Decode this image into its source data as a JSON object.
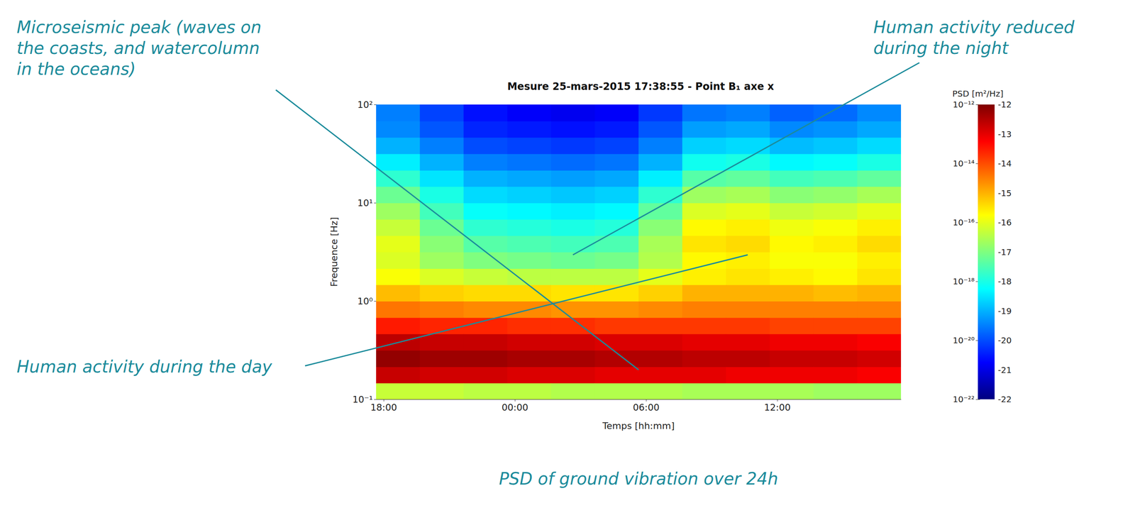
{
  "chart_data": {
    "type": "heatmap",
    "title": "Mesure 25-mars-2015 17:38:55 - Point B₁ axe x",
    "caption": "PSD of ground vibration over 24h",
    "xlabel": "Temps [hh:mm]",
    "ylabel": "Frequence [Hz]",
    "log": "y",
    "xlim": [
      17.65,
      41.65
    ],
    "xticks": [
      {
        "value": 18,
        "label": "18:00"
      },
      {
        "value": 24,
        "label": "00:00"
      },
      {
        "value": 30,
        "label": "06:00"
      },
      {
        "value": 36,
        "label": "12:00"
      }
    ],
    "ylim": [
      0.1,
      100
    ],
    "yticks": [
      {
        "value": 0.1,
        "label": "10⁻¹"
      },
      {
        "value": 1,
        "label": "10⁰"
      },
      {
        "value": 10,
        "label": "10¹"
      },
      {
        "value": 100,
        "label": "10²"
      }
    ],
    "time_edges": [
      17.65,
      19.65,
      21.65,
      23.65,
      25.65,
      27.65,
      29.65,
      31.65,
      33.65,
      35.65,
      37.65,
      39.65,
      41.65
    ],
    "frequency_edges": [
      0.1,
      0.147,
      0.215,
      0.316,
      0.464,
      0.681,
      1,
      1.47,
      2.15,
      3.16,
      4.64,
      6.81,
      10,
      14.7,
      21.5,
      31.6,
      46.4,
      68.1,
      100
    ],
    "values": [
      [
        -16.3,
        -12.7,
        -12.2,
        -12.6,
        -13.5,
        -14.4,
        -15.1,
        -15.8,
        -16.1,
        -16.0,
        -16.3,
        -16.7,
        -17.2,
        -17.8,
        -18.4,
        -19.0,
        -19.4,
        -19.5
      ],
      [
        -16.3,
        -12.8,
        -12.3,
        -12.7,
        -13.6,
        -14.5,
        -15.3,
        -16.1,
        -16.7,
        -16.9,
        -17.2,
        -17.6,
        -18.0,
        -18.5,
        -19.0,
        -19.5,
        -19.9,
        -20.1
      ],
      [
        -16.4,
        -12.8,
        -12.3,
        -12.7,
        -13.6,
        -14.6,
        -15.4,
        -16.3,
        -17.0,
        -17.4,
        -17.8,
        -18.2,
        -18.6,
        -19.0,
        -19.5,
        -20.0,
        -20.4,
        -20.6
      ],
      [
        -16.4,
        -12.9,
        -12.4,
        -12.8,
        -13.7,
        -14.6,
        -15.4,
        -16.4,
        -17.1,
        -17.5,
        -17.9,
        -18.3,
        -18.7,
        -19.1,
        -19.6,
        -20.1,
        -20.5,
        -20.8
      ],
      [
        -16.5,
        -12.9,
        -12.4,
        -12.8,
        -13.7,
        -14.7,
        -15.5,
        -16.4,
        -17.2,
        -17.6,
        -18.0,
        -18.4,
        -18.8,
        -19.2,
        -19.7,
        -20.2,
        -20.6,
        -20.9
      ],
      [
        -16.5,
        -13.0,
        -12.5,
        -12.9,
        -13.8,
        -14.7,
        -15.5,
        -16.4,
        -17.1,
        -17.5,
        -17.9,
        -18.3,
        -18.7,
        -19.1,
        -19.6,
        -20.1,
        -20.5,
        -20.8
      ],
      [
        -16.5,
        -13.0,
        -12.5,
        -12.9,
        -13.8,
        -14.6,
        -15.3,
        -16.0,
        -16.5,
        -16.6,
        -16.9,
        -17.3,
        -17.8,
        -18.4,
        -19.0,
        -19.5,
        -19.9,
        -20.2
      ],
      [
        -16.6,
        -13.0,
        -12.6,
        -13.0,
        -13.8,
        -14.5,
        -15.0,
        -15.6,
        -15.7,
        -15.5,
        -15.7,
        -16.1,
        -16.7,
        -17.4,
        -18.1,
        -18.7,
        -19.2,
        -19.6
      ],
      [
        -16.6,
        -13.1,
        -12.6,
        -13.0,
        -13.8,
        -14.5,
        -15.0,
        -15.5,
        -15.6,
        -15.4,
        -15.6,
        -16.0,
        -16.6,
        -17.3,
        -18.0,
        -18.6,
        -19.1,
        -19.5
      ],
      [
        -16.6,
        -13.1,
        -12.7,
        -13.1,
        -13.9,
        -14.5,
        -15.0,
        -15.6,
        -15.8,
        -15.7,
        -15.9,
        -16.3,
        -16.9,
        -17.6,
        -18.3,
        -18.9,
        -19.4,
        -19.8
      ],
      [
        -16.7,
        -13.1,
        -12.7,
        -13.1,
        -13.9,
        -14.5,
        -15.1,
        -15.7,
        -15.8,
        -15.6,
        -15.8,
        -16.2,
        -16.8,
        -17.5,
        -18.2,
        -18.8,
        -19.3,
        -19.7
      ],
      [
        -16.7,
        -13.2,
        -12.8,
        -13.2,
        -13.9,
        -14.5,
        -15.0,
        -15.5,
        -15.6,
        -15.4,
        -15.6,
        -16.0,
        -16.6,
        -17.3,
        -18.0,
        -18.6,
        -19.1,
        -19.4
      ]
    ],
    "colorbar": {
      "label": "PSD [m²/Hz]",
      "range": [
        -22,
        -12
      ],
      "ticks": [
        -12,
        -13,
        -14,
        -15,
        -16,
        -17,
        -18,
        -19,
        -20,
        -21,
        -22
      ],
      "log_ticks": [
        {
          "value": -12,
          "label": "10⁻¹²"
        },
        {
          "value": -14,
          "label": "10⁻¹⁴"
        },
        {
          "value": -16,
          "label": "10⁻¹⁶"
        },
        {
          "value": -18,
          "label": "10⁻¹⁸"
        },
        {
          "value": -20,
          "label": "10⁻²⁰"
        },
        {
          "value": -22,
          "label": "10⁻²²"
        }
      ]
    },
    "annotations": [
      {
        "text": "Microseismic peak (waves on the coasts, and watercolumn in the oceans)"
      },
      {
        "text": "Human activity reduced during the night"
      },
      {
        "text": "Human activity during the day"
      }
    ]
  }
}
